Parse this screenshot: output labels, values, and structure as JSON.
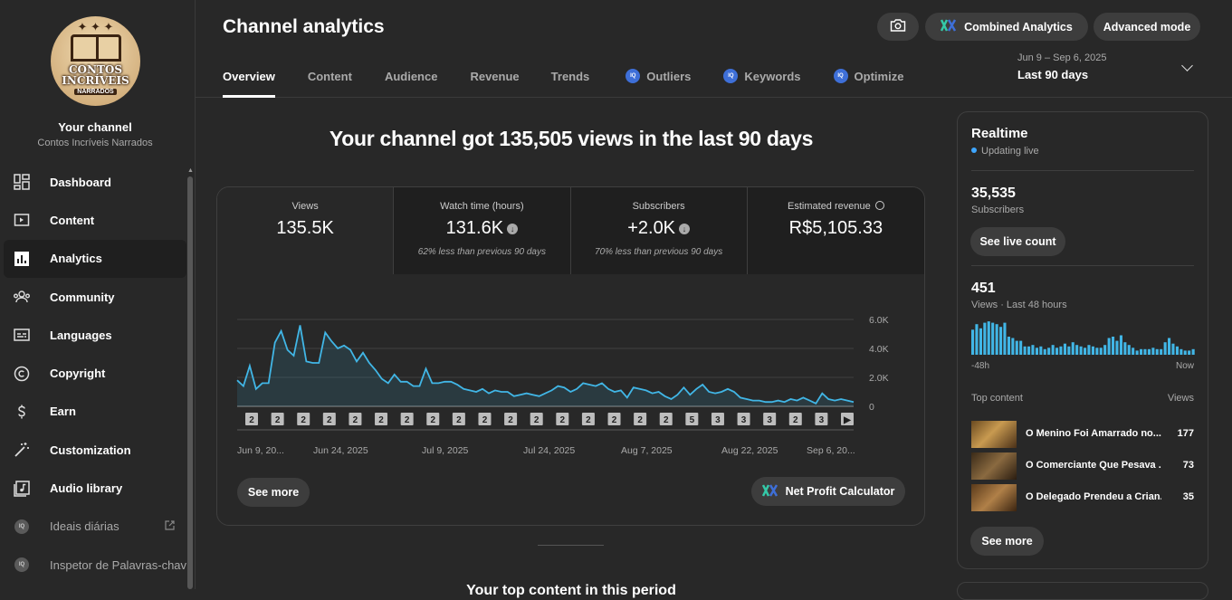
{
  "sidebar": {
    "avatar": {
      "stars": "✦ ✦ ✦",
      "line1": "CONTOS",
      "line2": "INCRÍVEIS",
      "line3": "NARRADOS"
    },
    "your_channel": "Your channel",
    "channel_name": "Contos Incríveis Narrados",
    "items": [
      {
        "label": "Dashboard",
        "icon": "dashboard-icon"
      },
      {
        "label": "Content",
        "icon": "content-icon"
      },
      {
        "label": "Analytics",
        "icon": "analytics-icon",
        "active": true
      },
      {
        "label": "Community",
        "icon": "community-icon"
      },
      {
        "label": "Languages",
        "icon": "languages-icon"
      },
      {
        "label": "Copyright",
        "icon": "copyright-icon"
      },
      {
        "label": "Earn",
        "icon": "earn-icon"
      },
      {
        "label": "Customization",
        "icon": "customization-icon"
      },
      {
        "label": "Audio library",
        "icon": "audio-library-icon"
      },
      {
        "label": "Ideais diárias",
        "icon": "iq-icon",
        "external": true
      },
      {
        "label": "Inspetor de Palavras-chav",
        "icon": "iq-icon"
      }
    ]
  },
  "header": {
    "title": "Channel analytics",
    "combined_label": "Combined Analytics",
    "advanced_label": "Advanced mode",
    "tabs": [
      "Overview",
      "Content",
      "Audience",
      "Revenue",
      "Trends",
      "Outliers",
      "Keywords",
      "Optimize"
    ],
    "iq_badge": "IQ",
    "date_range": "Jun 9 – Sep 6, 2025",
    "period": "Last 90 days"
  },
  "headline": "Your channel got 135,505 views in the last 90 days",
  "metrics": [
    {
      "label": "Views",
      "value": "135.5K",
      "note": ""
    },
    {
      "label": "Watch time (hours)",
      "value": "131.6K",
      "note": "62% less than previous 90 days"
    },
    {
      "label": "Subscribers",
      "value": "+2.0K",
      "note": "70% less than previous 90 days"
    },
    {
      "label": "Estimated revenue",
      "value": "R$5,105.33",
      "note": ""
    }
  ],
  "chart_data": {
    "type": "area",
    "title": "",
    "ylabel": "",
    "ylim": [
      0,
      6000
    ],
    "yticks": [
      "0",
      "2.0K",
      "4.0K",
      "6.0K"
    ],
    "xticks": [
      "Jun 9, 20...",
      "Jun 24, 2025",
      "Jul 9, 2025",
      "Jul 24, 2025",
      "Aug 7, 2025",
      "Aug 22, 2025",
      "Sep 6, 20..."
    ],
    "color": "#41b6e6",
    "values": [
      1800,
      1400,
      2800,
      1200,
      1600,
      1600,
      4400,
      5200,
      3900,
      3500,
      5600,
      3100,
      3000,
      3000,
      5100,
      4500,
      4000,
      4200,
      3900,
      3100,
      3700,
      3000,
      2500,
      1900,
      1600,
      2200,
      1700,
      1700,
      1400,
      1400,
      2600,
      1600,
      1600,
      1700,
      1700,
      1500,
      1200,
      1100,
      1000,
      1200,
      900,
      1100,
      1000,
      1000,
      700,
      800,
      900,
      800,
      700,
      900,
      1100,
      1400,
      1300,
      1000,
      1200,
      1600,
      1500,
      1400,
      1600,
      1200,
      1000,
      1100,
      600,
      1300,
      1200,
      1100,
      900,
      1000,
      700,
      500,
      800,
      1300,
      800,
      1200,
      1500,
      1000,
      900,
      1000,
      1200,
      1000,
      600,
      500,
      400,
      400,
      300,
      300,
      400,
      300,
      500,
      400,
      600,
      400,
      200,
      900,
      500,
      400,
      500,
      400,
      300
    ],
    "markers": [
      "2",
      "2",
      "2",
      "2",
      "2",
      "2",
      "2",
      "2",
      "2",
      "2",
      "2",
      "2",
      "2",
      "2",
      "2",
      "2",
      "2",
      "5",
      "3",
      "3",
      "3",
      "2",
      "3"
    ],
    "marker_play": "▶"
  },
  "card_buttons": {
    "see_more": "See more",
    "net_profit": "Net Profit Calculator"
  },
  "realtime": {
    "title": "Realtime",
    "status": "Updating live",
    "subs_value": "35,535",
    "subs_label": "Subscribers",
    "live_count_btn": "See live count",
    "views_value": "451",
    "views_label": "Views · Last 48 hours",
    "bars": [
      18,
      22,
      19,
      23,
      24,
      23,
      22,
      20,
      23,
      13,
      12,
      10,
      10,
      6,
      6,
      7,
      5,
      6,
      4,
      5,
      7,
      5,
      6,
      8,
      6,
      9,
      7,
      6,
      5,
      7,
      6,
      5,
      5,
      7,
      12,
      13,
      10,
      14,
      9,
      7,
      5,
      3,
      4,
      4,
      4,
      5,
      4,
      4,
      9,
      12,
      8,
      6,
      4,
      3,
      3,
      4
    ],
    "from": "-48h",
    "to": "Now",
    "top_content": "Top content",
    "views_col": "Views",
    "items": [
      {
        "title": "O Menino Foi Amarrado no...",
        "views": "177"
      },
      {
        "title": "O Comerciante Que Pesava ...",
        "views": "73"
      },
      {
        "title": "O Delegado Prendeu a Crian...",
        "views": "35"
      }
    ],
    "see_more": "See more"
  },
  "bottom_text": "Your top content in this period"
}
